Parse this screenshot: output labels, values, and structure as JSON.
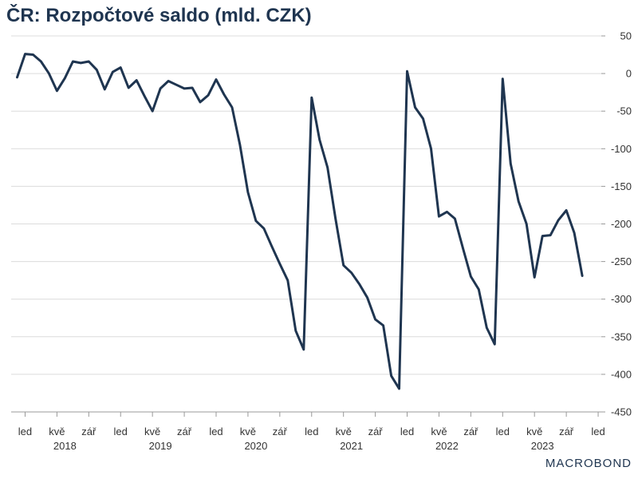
{
  "chart_data": {
    "type": "line",
    "title": "ČR: Rozpočtové saldo (mld. CZK)",
    "xlabel": "",
    "ylabel": "",
    "ylim": [
      -450,
      50
    ],
    "yticks": [
      50,
      0,
      -50,
      -100,
      -150,
      -200,
      -250,
      -300,
      -350,
      -400,
      -450
    ],
    "x_month_ticks": [
      {
        "label": "led",
        "month": "2018-01"
      },
      {
        "label": "kvě",
        "month": "2018-05"
      },
      {
        "label": "zář",
        "month": "2018-09"
      },
      {
        "label": "led",
        "month": "2019-01"
      },
      {
        "label": "kvě",
        "month": "2019-05"
      },
      {
        "label": "zář",
        "month": "2019-09"
      },
      {
        "label": "led",
        "month": "2020-01"
      },
      {
        "label": "kvě",
        "month": "2020-05"
      },
      {
        "label": "zář",
        "month": "2020-09"
      },
      {
        "label": "led",
        "month": "2021-01"
      },
      {
        "label": "kvě",
        "month": "2021-05"
      },
      {
        "label": "zář",
        "month": "2021-09"
      },
      {
        "label": "led",
        "month": "2022-01"
      },
      {
        "label": "kvě",
        "month": "2022-05"
      },
      {
        "label": "zář",
        "month": "2022-09"
      },
      {
        "label": "led",
        "month": "2023-01"
      },
      {
        "label": "kvě",
        "month": "2023-05"
      },
      {
        "label": "zář",
        "month": "2023-09"
      },
      {
        "label": "led",
        "month": "2024-01"
      }
    ],
    "year_labels": [
      {
        "label": "2018",
        "month": "2018-06"
      },
      {
        "label": "2019",
        "month": "2019-06"
      },
      {
        "label": "2020",
        "month": "2020-06"
      },
      {
        "label": "2021",
        "month": "2021-06"
      },
      {
        "label": "2022",
        "month": "2022-06"
      },
      {
        "label": "2023",
        "month": "2023-06"
      }
    ],
    "grid": true,
    "legend": "none",
    "color": "#1f3550",
    "series": [
      {
        "x": [
          "2017-12",
          "2018-01",
          "2018-02",
          "2018-03",
          "2018-04",
          "2018-05",
          "2018-06",
          "2018-07",
          "2018-08",
          "2018-09",
          "2018-10",
          "2018-11",
          "2018-12",
          "2019-01",
          "2019-02",
          "2019-03",
          "2019-04",
          "2019-05",
          "2019-06",
          "2019-07",
          "2019-08",
          "2019-09",
          "2019-10",
          "2019-11",
          "2019-12",
          "2020-01",
          "2020-02",
          "2020-03",
          "2020-04",
          "2020-05",
          "2020-06",
          "2020-07",
          "2020-08",
          "2020-09",
          "2020-10",
          "2020-11",
          "2020-12",
          "2021-01",
          "2021-02",
          "2021-03",
          "2021-04",
          "2021-05",
          "2021-06",
          "2021-07",
          "2021-08",
          "2021-09",
          "2021-10",
          "2021-11",
          "2021-12",
          "2022-01",
          "2022-02",
          "2022-03",
          "2022-04",
          "2022-05",
          "2022-06",
          "2022-07",
          "2022-08",
          "2022-09",
          "2022-10",
          "2022-11",
          "2022-12",
          "2023-01",
          "2023-02",
          "2023-03",
          "2023-04",
          "2023-05",
          "2023-06",
          "2023-07",
          "2023-08",
          "2023-09",
          "2023-10",
          "2023-11"
        ],
        "values": [
          -5,
          26,
          25,
          16,
          0,
          -23,
          -6,
          16,
          14,
          16,
          5,
          -21,
          2,
          8,
          -19,
          -9,
          -30,
          -50,
          -20,
          -10,
          -15,
          -20,
          -19,
          -38,
          -29,
          -8,
          -28,
          -45,
          -95,
          -158,
          -196,
          -206,
          -230,
          -253,
          -275,
          -342,
          -367,
          -32,
          -88,
          -125,
          -193,
          -255,
          -265,
          -280,
          -298,
          -327,
          -335,
          -402,
          -419,
          3,
          -45,
          -60,
          -100,
          -190,
          -184,
          -193,
          -232,
          -270,
          -287,
          -338,
          -360,
          -7,
          -120,
          -170,
          -200,
          -271,
          -216,
          -215,
          -195,
          -182,
          -212,
          -269
        ]
      }
    ]
  },
  "logo_text": "MACROBOND"
}
